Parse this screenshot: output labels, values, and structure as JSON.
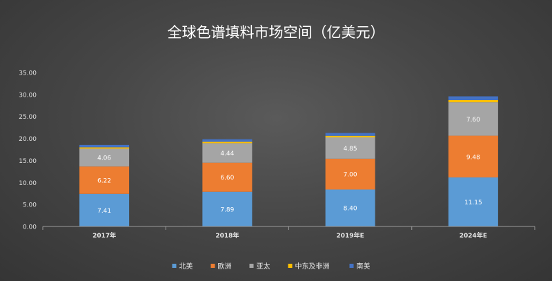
{
  "chart_data": {
    "type": "bar",
    "stacked": true,
    "title": "全球色谱填料市场空间（亿美元）",
    "categories": [
      "2017年",
      "2018年",
      "2019年E",
      "2024年E"
    ],
    "ylim": [
      0,
      35
    ],
    "yticks": [
      "0.00",
      "5.00",
      "10.00",
      "15.00",
      "20.00",
      "25.00",
      "30.00",
      "35.00"
    ],
    "grid": false,
    "legend_position": "bottom",
    "series": [
      {
        "name": "北美",
        "color": "#5b9bd5",
        "values": [
          7.41,
          7.89,
          8.4,
          11.15
        ],
        "labels": [
          "7.41",
          "7.89",
          "8.40",
          "11.15"
        ]
      },
      {
        "name": "欧洲",
        "color": "#ed7d31",
        "values": [
          6.22,
          6.6,
          7.0,
          9.48
        ],
        "labels": [
          "6.22",
          "6.60",
          "7.00",
          "9.48"
        ]
      },
      {
        "name": "亚太",
        "color": "#a5a5a5",
        "values": [
          4.06,
          4.44,
          4.85,
          7.6
        ],
        "labels": [
          "4.06",
          "4.44",
          "4.85",
          "7.60"
        ]
      },
      {
        "name": "中东及非洲",
        "color": "#ffc000",
        "values": [
          0.3,
          0.3,
          0.35,
          0.5
        ],
        "labels": []
      },
      {
        "name": "南美",
        "color": "#4472c4",
        "values": [
          0.55,
          0.6,
          0.65,
          0.85
        ],
        "labels": []
      }
    ]
  }
}
